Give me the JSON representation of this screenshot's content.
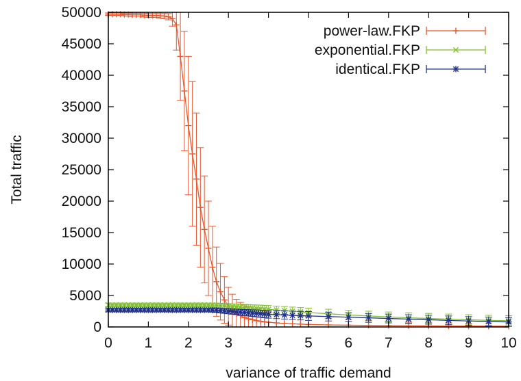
{
  "chart_data": {
    "type": "line",
    "xlabel": "variance of traffic demand",
    "ylabel": "Total traffic",
    "xlim": [
      0,
      10
    ],
    "ylim": [
      0,
      50000
    ],
    "xticks": [
      "0",
      "1",
      "2",
      "3",
      "4",
      "5",
      "6",
      "7",
      "8",
      "9",
      "10"
    ],
    "yticks": [
      "0",
      "5000",
      "10000",
      "15000",
      "20000",
      "25000",
      "30000",
      "35000",
      "40000",
      "45000",
      "50000"
    ],
    "grid": false,
    "legend_position": "top-right",
    "error_bars": true,
    "series": [
      {
        "name": "power-law.FKP",
        "color": "#e8562a",
        "marker": "plus",
        "x": [
          0,
          0.1,
          0.2,
          0.3,
          0.4,
          0.5,
          0.6,
          0.7,
          0.8,
          0.9,
          1.0,
          1.1,
          1.2,
          1.3,
          1.4,
          1.5,
          1.6,
          1.7,
          1.8,
          1.9,
          2.0,
          2.1,
          2.2,
          2.3,
          2.4,
          2.5,
          2.6,
          2.7,
          2.8,
          2.9,
          3.0,
          3.1,
          3.2,
          3.3,
          3.4,
          3.5,
          3.6,
          3.7,
          3.8,
          3.9,
          4.0,
          4.2,
          4.4,
          4.6,
          4.8,
          5.0,
          5.5,
          6.0,
          6.5,
          7.0,
          7.5,
          8.0,
          8.5,
          9.0,
          9.5,
          10.0
        ],
        "y": [
          49700,
          49700,
          49700,
          49700,
          49650,
          49650,
          49600,
          49600,
          49600,
          49550,
          49500,
          49500,
          49500,
          49450,
          49400,
          49300,
          49000,
          48000,
          43000,
          37500,
          32000,
          27500,
          23500,
          19000,
          15500,
          12500,
          9500,
          7200,
          5600,
          4300,
          3300,
          2600,
          2100,
          1800,
          1500,
          1300,
          1150,
          1000,
          900,
          820,
          750,
          650,
          560,
          500,
          450,
          400,
          330,
          280,
          240,
          210,
          190,
          170,
          150,
          140,
          130,
          120
        ],
        "err": [
          200,
          200,
          200,
          200,
          200,
          250,
          250,
          250,
          250,
          300,
          300,
          300,
          300,
          350,
          400,
          500,
          1200,
          4000,
          7000,
          9500,
          11000,
          11500,
          10500,
          9500,
          8500,
          7500,
          6500,
          5500,
          4500,
          3700,
          3000,
          2600,
          2300,
          2100,
          2000,
          1900,
          1850,
          1800,
          1750,
          1700,
          1650,
          1550,
          1450,
          1350,
          1250,
          1150,
          1000,
          900,
          800,
          700,
          600,
          550,
          500,
          450,
          400,
          380
        ]
      },
      {
        "name": "exponential.FKP",
        "color": "#7fbf2a",
        "marker": "x",
        "x": [
          0,
          0.1,
          0.2,
          0.3,
          0.4,
          0.5,
          0.6,
          0.7,
          0.8,
          0.9,
          1.0,
          1.1,
          1.2,
          1.3,
          1.4,
          1.5,
          1.6,
          1.7,
          1.8,
          1.9,
          2.0,
          2.1,
          2.2,
          2.3,
          2.4,
          2.5,
          2.6,
          2.7,
          2.8,
          2.9,
          3.0,
          3.1,
          3.2,
          3.3,
          3.4,
          3.5,
          3.6,
          3.7,
          3.8,
          3.9,
          4.0,
          4.2,
          4.4,
          4.6,
          4.8,
          5.0,
          5.5,
          6.0,
          6.5,
          7.0,
          7.5,
          8.0,
          8.5,
          9.0,
          9.5,
          10.0
        ],
        "y": [
          3500,
          3500,
          3500,
          3500,
          3500,
          3500,
          3500,
          3500,
          3500,
          3500,
          3500,
          3500,
          3500,
          3500,
          3500,
          3500,
          3500,
          3500,
          3500,
          3500,
          3500,
          3500,
          3500,
          3500,
          3500,
          3500,
          3480,
          3450,
          3400,
          3350,
          3300,
          3250,
          3200,
          3150,
          3100,
          3050,
          3000,
          2950,
          2900,
          2850,
          2800,
          2700,
          2600,
          2500,
          2400,
          2300,
          2100,
          1900,
          1750,
          1600,
          1450,
          1350,
          1250,
          1150,
          1050,
          1000
        ],
        "err": [
          300,
          300,
          300,
          300,
          300,
          300,
          300,
          300,
          300,
          300,
          300,
          300,
          300,
          300,
          300,
          300,
          300,
          300,
          300,
          300,
          300,
          300,
          300,
          300,
          300,
          300,
          320,
          340,
          360,
          380,
          400,
          420,
          440,
          460,
          480,
          500,
          520,
          540,
          560,
          580,
          600,
          620,
          640,
          660,
          680,
          700,
          720,
          740,
          760,
          780,
          800,
          800,
          800,
          800,
          800,
          800
        ]
      },
      {
        "name": "identical.FKP",
        "color": "#1f2f8c",
        "marker": "star",
        "x": [
          0,
          0.1,
          0.2,
          0.3,
          0.4,
          0.5,
          0.6,
          0.7,
          0.8,
          0.9,
          1.0,
          1.1,
          1.2,
          1.3,
          1.4,
          1.5,
          1.6,
          1.7,
          1.8,
          1.9,
          2.0,
          2.1,
          2.2,
          2.3,
          2.4,
          2.5,
          2.6,
          2.7,
          2.8,
          2.9,
          3.0,
          3.1,
          3.2,
          3.3,
          3.4,
          3.5,
          3.6,
          3.7,
          3.8,
          3.9,
          4.0,
          4.2,
          4.4,
          4.6,
          4.8,
          5.0,
          5.5,
          6.0,
          6.5,
          7.0,
          7.5,
          8.0,
          8.5,
          9.0,
          9.5,
          10.0
        ],
        "y": [
          2700,
          2700,
          2700,
          2700,
          2700,
          2700,
          2700,
          2700,
          2700,
          2700,
          2700,
          2700,
          2700,
          2700,
          2700,
          2700,
          2700,
          2700,
          2700,
          2700,
          2700,
          2700,
          2700,
          2700,
          2700,
          2700,
          2680,
          2650,
          2600,
          2550,
          2500,
          2450,
          2400,
          2350,
          2300,
          2250,
          2200,
          2150,
          2100,
          2050,
          2000,
          1950,
          1900,
          1850,
          1800,
          1750,
          1650,
          1550,
          1450,
          1350,
          1250,
          1150,
          1050,
          950,
          850,
          800
        ],
        "err": [
          300,
          300,
          300,
          300,
          300,
          300,
          300,
          300,
          300,
          300,
          300,
          300,
          300,
          300,
          300,
          300,
          300,
          300,
          300,
          300,
          300,
          300,
          300,
          300,
          300,
          300,
          320,
          340,
          360,
          380,
          400,
          420,
          440,
          460,
          480,
          500,
          520,
          540,
          560,
          580,
          600,
          620,
          640,
          660,
          680,
          700,
          700,
          700,
          700,
          700,
          700,
          700,
          700,
          700,
          700,
          700
        ]
      }
    ]
  }
}
